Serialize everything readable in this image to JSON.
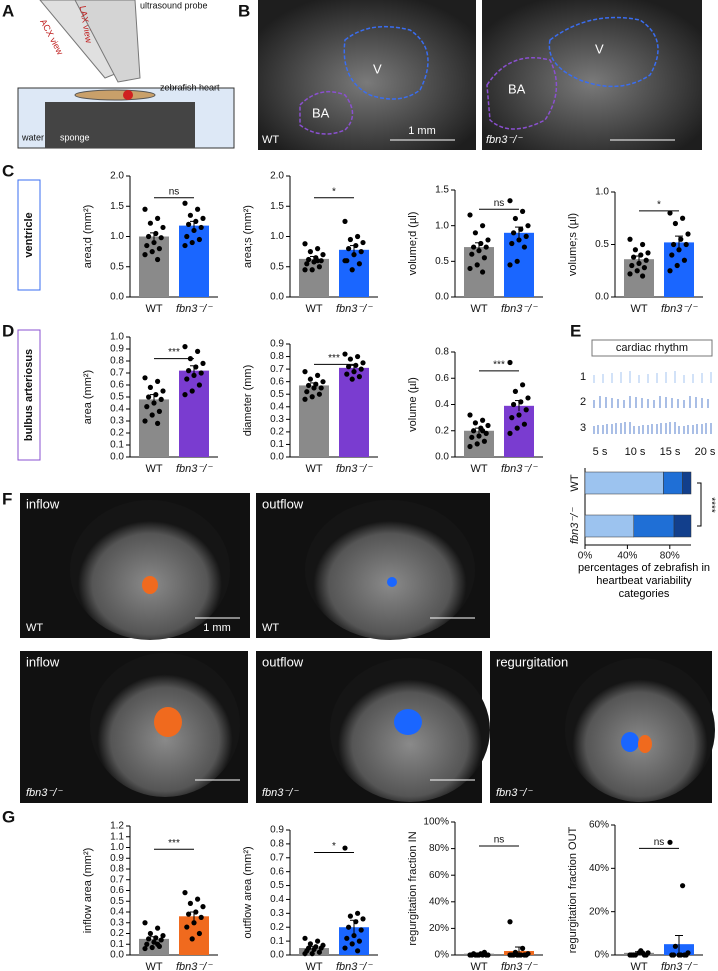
{
  "figure": {
    "letters": [
      "A",
      "B",
      "C",
      "D",
      "E",
      "F",
      "G"
    ],
    "schematic": {
      "probe": "ultrasound probe",
      "lax": "LAX view",
      "acx": "ACX view",
      "heart": "zebrafish heart",
      "water": "water",
      "sponge": "sponge"
    },
    "ultrasound": {
      "v": "V",
      "ba": "BA",
      "wt": "WT",
      "mutant": "fbn3⁻/⁻",
      "scale": "1 mm"
    },
    "row_labels": {
      "ventricle": "ventricle",
      "bulbus": "bulbus arteriosus"
    },
    "rhythm": {
      "title": "cardiac rhythm",
      "traces": [
        "1",
        "2",
        "3"
      ],
      "times": [
        "5 s",
        "10 s",
        "15 s",
        "20 s"
      ]
    },
    "doppler": {
      "inflow": "inflow",
      "outflow": "outflow",
      "regurgitation": "regurgitation",
      "wt": "WT",
      "mutant": "fbn3⁻/⁻",
      "scale": "1 mm"
    }
  },
  "chart_data": [
    {
      "type": "bar",
      "ylabel": "area;d (mm²)",
      "categories": [
        "WT",
        "fbn3⁻/⁻"
      ],
      "colors": [
        "#8a8a8a",
        "#1a66ff"
      ],
      "values": [
        1.0,
        1.18
      ],
      "errors": [
        0.06,
        0.07
      ],
      "points": [
        [
          1.45,
          1.3,
          1.22,
          1.15,
          1.05,
          1.0,
          0.98,
          0.9,
          0.85,
          0.8,
          0.75,
          0.7,
          0.62
        ],
        [
          1.55,
          1.45,
          1.35,
          1.3,
          1.25,
          1.2,
          1.15,
          1.1,
          1.0,
          0.95,
          0.9,
          0.85
        ]
      ],
      "ylim": [
        0,
        2
      ],
      "yticks": [
        {
          "value": 0,
          "label": "0.0"
        },
        0.5,
        {
          "value": 1,
          "label": "1.0"
        },
        1.5,
        {
          "value": 2,
          "label": "2.0"
        }
      ],
      "significance": "ns"
    },
    {
      "type": "bar",
      "ylabel": "area;s (mm²)",
      "categories": [
        "WT",
        "fbn3⁻/⁻"
      ],
      "colors": [
        "#8a8a8a",
        "#1a66ff"
      ],
      "values": [
        0.63,
        0.78
      ],
      "errors": [
        0.04,
        0.07
      ],
      "points": [
        [
          0.88,
          0.8,
          0.75,
          0.7,
          0.65,
          0.62,
          0.6,
          0.58,
          0.55,
          0.5,
          0.45,
          0.45,
          0.6
        ],
        [
          1.25,
          1.0,
          0.95,
          0.9,
          0.85,
          0.8,
          0.75,
          0.7,
          0.6,
          0.55,
          0.45,
          0.6
        ]
      ],
      "ylim": [
        0,
        2
      ],
      "yticks": [
        {
          "value": 0,
          "label": "0.0"
        },
        0.5,
        {
          "value": 1,
          "label": "1.0"
        },
        1.5,
        {
          "value": 2,
          "label": "2.0"
        }
      ],
      "significance": "*"
    },
    {
      "type": "bar",
      "ylabel": "volume;d (µl)",
      "categories": [
        "WT",
        "fbn3⁻/⁻"
      ],
      "colors": [
        "#8a8a8a",
        "#1a66ff"
      ],
      "values": [
        0.7,
        0.9
      ],
      "errors": [
        0.06,
        0.08
      ],
      "points": [
        [
          1.15,
          1.0,
          0.9,
          0.8,
          0.75,
          0.7,
          0.7,
          0.65,
          0.6,
          0.55,
          0.45,
          0.4,
          0.35
        ],
        [
          1.35,
          1.2,
          1.1,
          1.0,
          0.95,
          0.9,
          0.85,
          0.8,
          0.75,
          0.7,
          0.5,
          0.45
        ]
      ],
      "ylim": [
        0,
        1.5
      ],
      "yticks": [
        {
          "value": 0,
          "label": "0.0"
        },
        0.5,
        {
          "value": 1,
          "label": "1.0"
        },
        1.5
      ],
      "significance": "ns"
    },
    {
      "type": "bar",
      "ylabel": "volume;s (µl)",
      "categories": [
        "WT",
        "fbn3⁻/⁻"
      ],
      "colors": [
        "#8a8a8a",
        "#1a66ff"
      ],
      "values": [
        0.36,
        0.52
      ],
      "errors": [
        0.03,
        0.06
      ],
      "points": [
        [
          0.55,
          0.5,
          0.45,
          0.42,
          0.4,
          0.38,
          0.35,
          0.32,
          0.3,
          0.28,
          0.25,
          0.22,
          0.2
        ],
        [
          0.8,
          0.75,
          0.7,
          0.6,
          0.55,
          0.5,
          0.5,
          0.45,
          0.4,
          0.35,
          0.3,
          0.25
        ]
      ],
      "ylim": [
        0,
        1
      ],
      "yticks": [
        {
          "value": 0,
          "label": "0.0"
        },
        0.5,
        {
          "value": 1,
          "label": "1.0"
        }
      ],
      "significance": "*"
    },
    {
      "type": "bar",
      "ylabel": "area (mm²)",
      "categories": [
        "WT",
        "fbn3⁻/⁻"
      ],
      "colors": [
        "#8a8a8a",
        "#7a3cd0"
      ],
      "values": [
        0.48,
        0.72
      ],
      "errors": [
        0.04,
        0.04
      ],
      "points": [
        [
          0.66,
          0.63,
          0.58,
          0.55,
          0.52,
          0.5,
          0.48,
          0.45,
          0.42,
          0.38,
          0.35,
          0.3,
          0.28
        ],
        [
          0.92,
          0.88,
          0.82,
          0.78,
          0.75,
          0.72,
          0.7,
          0.68,
          0.65,
          0.6,
          0.55,
          0.52
        ]
      ],
      "ylim": [
        0,
        1
      ],
      "yticks": [
        {
          "value": 0,
          "label": "0.0"
        },
        0.1,
        0.2,
        0.3,
        0.4,
        0.5,
        0.6,
        0.7,
        0.8,
        0.9,
        {
          "value": 1,
          "label": "1.0"
        }
      ],
      "significance": "***"
    },
    {
      "type": "bar",
      "ylabel": "diameter (mm)",
      "categories": [
        "WT",
        "fbn3⁻/⁻"
      ],
      "colors": [
        "#8a8a8a",
        "#7a3cd0"
      ],
      "values": [
        0.57,
        0.71
      ],
      "errors": [
        0.02,
        0.02
      ],
      "points": [
        [
          0.68,
          0.65,
          0.62,
          0.6,
          0.58,
          0.57,
          0.55,
          0.55,
          0.52,
          0.5,
          0.48,
          0.46
        ],
        [
          0.82,
          0.8,
          0.78,
          0.75,
          0.73,
          0.72,
          0.7,
          0.68,
          0.66,
          0.64,
          0.62
        ]
      ],
      "ylim": [
        0,
        0.9
      ],
      "yticks": [
        {
          "value": 0,
          "label": "0.0"
        },
        0.1,
        0.2,
        0.3,
        0.4,
        0.5,
        0.6,
        0.7,
        0.8,
        0.9
      ],
      "significance": "***"
    },
    {
      "type": "bar",
      "ylabel": "volume (µl)",
      "categories": [
        "WT",
        "fbn3⁻/⁻"
      ],
      "colors": [
        "#8a8a8a",
        "#7a3cd0"
      ],
      "values": [
        0.2,
        0.39
      ],
      "errors": [
        0.02,
        0.04
      ],
      "points": [
        [
          0.32,
          0.28,
          0.26,
          0.24,
          0.22,
          0.2,
          0.18,
          0.16,
          0.15,
          0.12,
          0.1,
          0.08,
          0.2
        ],
        [
          0.72,
          0.55,
          0.5,
          0.45,
          0.42,
          0.4,
          0.36,
          0.32,
          0.3,
          0.25,
          0.22,
          0.18
        ]
      ],
      "ylim": [
        0,
        0.8
      ],
      "yticks": [
        {
          "value": 0,
          "label": "0.0"
        },
        0.2,
        0.4,
        0.6,
        0.8
      ],
      "significance": "***"
    },
    {
      "type": "stacked-hbar",
      "xlabel": "percentages of zebrafish in heartbeat variability categories",
      "categories": [
        "WT",
        "fbn3⁻/⁻"
      ],
      "series": [
        {
          "color": "#9cc3ef",
          "values": [
            74,
            46
          ]
        },
        {
          "color": "#1f6fd6",
          "values": [
            18,
            38
          ]
        },
        {
          "color": "#123f8c",
          "values": [
            8,
            16
          ]
        }
      ],
      "xlim": [
        0,
        100
      ],
      "xticks": [
        {
          "value": 0,
          "label": "0%"
        },
        {
          "value": 40,
          "label": "40%"
        },
        {
          "value": 80,
          "label": "80%"
        }
      ],
      "significance": "****"
    },
    {
      "type": "bar",
      "ylabel": "inflow area (mm²)",
      "categories": [
        "WT",
        "fbn3⁻/⁻"
      ],
      "colors": [
        "#8a8a8a",
        "#f06a1e"
      ],
      "values": [
        0.15,
        0.36
      ],
      "errors": [
        0.02,
        0.04
      ],
      "points": [
        [
          0.3,
          0.25,
          0.2,
          0.18,
          0.16,
          0.15,
          0.14,
          0.12,
          0.1,
          0.08,
          0.07,
          0.06,
          0.1
        ],
        [
          0.58,
          0.52,
          0.48,
          0.45,
          0.4,
          0.38,
          0.35,
          0.3,
          0.26,
          0.2,
          0.15
        ]
      ],
      "ylim": [
        0,
        1.2
      ],
      "yticks": [
        {
          "value": 0,
          "label": "0.0"
        },
        0.1,
        0.2,
        0.3,
        0.4,
        0.5,
        0.6,
        0.7,
        0.8,
        0.9,
        {
          "value": 1,
          "label": "1.0"
        },
        1.1,
        1.2
      ],
      "significance": "***"
    },
    {
      "type": "bar",
      "ylabel": "outflow area (mm²)",
      "categories": [
        "WT",
        "fbn3⁻/⁻"
      ],
      "colors": [
        "#8a8a8a",
        "#1a66ff"
      ],
      "values": [
        0.05,
        0.2
      ],
      "errors": [
        0.01,
        0.05
      ],
      "points": [
        [
          0.12,
          0.1,
          0.08,
          0.07,
          0.06,
          0.05,
          0.05,
          0.04,
          0.03,
          0.02,
          0.01,
          0.01
        ],
        [
          0.77,
          0.3,
          0.28,
          0.26,
          0.24,
          0.2,
          0.18,
          0.14,
          0.12,
          0.1,
          0.08,
          0.05,
          0.03
        ]
      ],
      "ylim": [
        0,
        0.9
      ],
      "yticks": [
        {
          "value": 0,
          "label": "0.0"
        },
        0.1,
        0.2,
        0.3,
        0.4,
        0.5,
        0.6,
        0.7,
        0.8,
        0.9
      ],
      "significance": "*"
    },
    {
      "type": "bar",
      "ylabel": "regurgitation fraction IN",
      "categories": [
        "WT",
        "fbn3⁻/⁻"
      ],
      "colors": [
        "#8a8a8a",
        "#f06a1e"
      ],
      "values": [
        1,
        3
      ],
      "errors": [
        0.5,
        3
      ],
      "points": [
        [
          0,
          0,
          0,
          0,
          1,
          1,
          0,
          0,
          0,
          2,
          0
        ],
        [
          25,
          5,
          2,
          1,
          0,
          0,
          0,
          0,
          0,
          0,
          0,
          0
        ]
      ],
      "ylim": [
        0,
        100
      ],
      "yticks": [
        {
          "value": 0,
          "label": "0%"
        },
        {
          "value": 20,
          "label": "20%"
        },
        {
          "value": 40,
          "label": "40%"
        },
        {
          "value": 60,
          "label": "60%"
        },
        {
          "value": 80,
          "label": "80%"
        },
        {
          "value": 100,
          "label": "100%"
        }
      ],
      "significance": "ns"
    },
    {
      "type": "bar",
      "ylabel": "regurgitation fraction OUT",
      "categories": [
        "WT",
        "fbn3⁻/⁻"
      ],
      "colors": [
        "#8a8a8a",
        "#1a66ff"
      ],
      "values": [
        1,
        5
      ],
      "errors": [
        0.5,
        4
      ],
      "points": [
        [
          0,
          1,
          0,
          1,
          2,
          0,
          0,
          1,
          0,
          0
        ],
        [
          52,
          32,
          4,
          1,
          0,
          0,
          0,
          0,
          0,
          0
        ]
      ],
      "ylim": [
        0,
        60
      ],
      "yticks": [
        {
          "value": 0,
          "label": "0%"
        },
        {
          "value": 20,
          "label": "20%"
        },
        {
          "value": 40,
          "label": "40%"
        },
        {
          "value": 60,
          "label": "60%"
        }
      ],
      "significance": "ns"
    }
  ]
}
